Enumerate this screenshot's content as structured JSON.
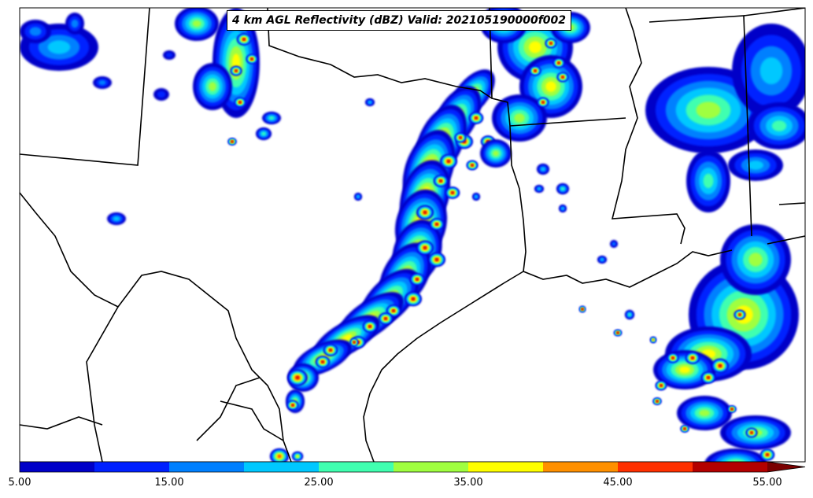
{
  "title": "4 km AGL Reflectivity (dBZ) Valid: 202105190000f002",
  "colorbar": {
    "colors": [
      "#0000c8",
      "#0020ff",
      "#0080ff",
      "#00c8ff",
      "#40ffb0",
      "#a0ff40",
      "#ffff00",
      "#ff9000",
      "#ff3000",
      "#b40000"
    ],
    "extend_color": "#7a0000",
    "tick_labels": [
      "5.00",
      "15.00",
      "25.00",
      "35.00",
      "45.00",
      "55.00"
    ],
    "min": 5,
    "max": 55,
    "step": 5
  },
  "map": {
    "region": "Texas and US Gulf Coast",
    "boundary_color": "#000000",
    "background": "#ffffff"
  }
}
